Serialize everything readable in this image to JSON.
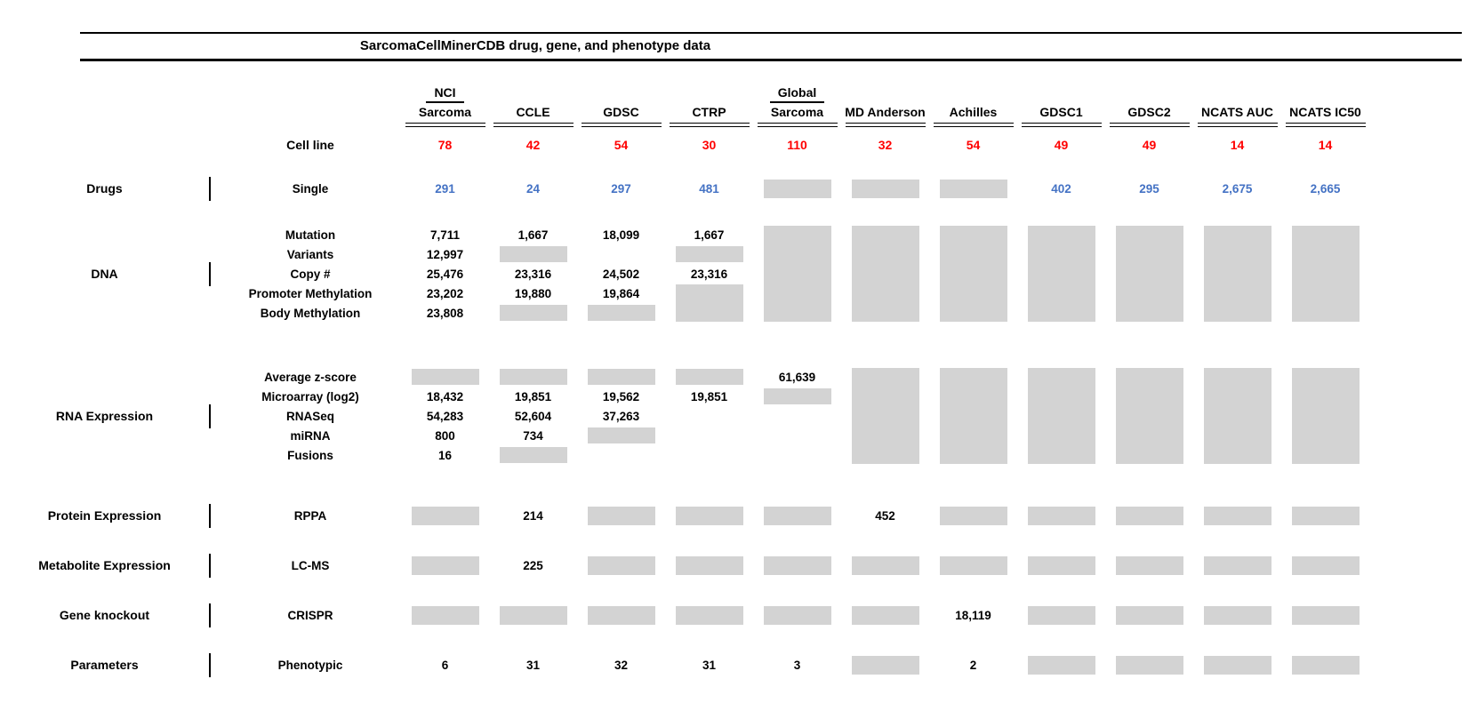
{
  "colors": {
    "count_red": "#ff0000",
    "drug_blue": "#4472c4",
    "no_data_gray": "#d3d3d3",
    "rule_black": "#000000"
  },
  "chart_data": {
    "type": "table",
    "title": "SarcomaCellMinerCDB drug, gene, and phenotype data",
    "columns": [
      {
        "group": "NCI",
        "name": "Sarcoma"
      },
      {
        "group": "",
        "name": "CCLE"
      },
      {
        "group": "",
        "name": "GDSC"
      },
      {
        "group": "",
        "name": "CTRP"
      },
      {
        "group": "Global",
        "name": "Sarcoma"
      },
      {
        "group": "",
        "name": "MD Anderson"
      },
      {
        "group": "",
        "name": "Achilles"
      },
      {
        "group": "",
        "name": "GDSC1"
      },
      {
        "group": "",
        "name": "GDSC2"
      },
      {
        "group": "",
        "name": "NCATS AUC"
      },
      {
        "group": "",
        "name": "NCATS IC50"
      }
    ],
    "cell_line": {
      "label": "Cell line",
      "values": [
        "78",
        "42",
        "54",
        "30",
        "110",
        "32",
        "54",
        "49",
        "49",
        "14",
        "14"
      ]
    },
    "sections": [
      {
        "category": "Drugs",
        "rows": [
          {
            "label": "Single",
            "color": "blue",
            "cells": [
              "291",
              "24",
              "297",
              "481",
              {
                "na": "box"
              },
              {
                "na": "box"
              },
              {
                "na": "box"
              },
              "402",
              "295",
              "2,675",
              "2,665"
            ]
          }
        ]
      },
      {
        "category": "DNA",
        "rows": [
          {
            "label": "Mutation",
            "cells": [
              "7,711",
              "1,667",
              "18,099",
              "1,667",
              {
                "na": "span"
              },
              {
                "na": "span"
              },
              {
                "na": "span"
              },
              {
                "na": "span"
              },
              {
                "na": "span"
              },
              {
                "na": "span"
              },
              {
                "na": "span"
              }
            ]
          },
          {
            "label": "Variants",
            "cells": [
              "12,997",
              {
                "na": "box"
              },
              null,
              {
                "na": "box"
              },
              {
                "na": "span"
              },
              {
                "na": "span"
              },
              {
                "na": "span"
              },
              {
                "na": "span"
              },
              {
                "na": "span"
              },
              {
                "na": "span"
              },
              {
                "na": "span"
              }
            ]
          },
          {
            "label": "Copy #",
            "cells": [
              "25,476",
              "23,316",
              "24,502",
              "23,316",
              {
                "na": "span"
              },
              {
                "na": "span"
              },
              {
                "na": "span"
              },
              {
                "na": "span"
              },
              {
                "na": "span"
              },
              {
                "na": "span"
              },
              {
                "na": "span"
              }
            ]
          },
          {
            "label": "Promoter Methylation",
            "cells": [
              "23,202",
              "19,880",
              "19,864",
              {
                "na": "span"
              },
              {
                "na": "span"
              },
              {
                "na": "span"
              },
              {
                "na": "span"
              },
              {
                "na": "span"
              },
              {
                "na": "span"
              },
              {
                "na": "span"
              },
              {
                "na": "span"
              }
            ]
          },
          {
            "label": "Body Methylation",
            "cells": [
              "23,808",
              {
                "na": "box"
              },
              {
                "na": "box"
              },
              {
                "na": "span"
              },
              {
                "na": "span"
              },
              {
                "na": "span"
              },
              {
                "na": "span"
              },
              {
                "na": "span"
              },
              {
                "na": "span"
              },
              {
                "na": "span"
              },
              {
                "na": "span"
              }
            ]
          }
        ]
      },
      {
        "category": "RNA Expression",
        "rows": [
          {
            "label": "Average z-score",
            "cells": [
              {
                "na": "box"
              },
              {
                "na": "box"
              },
              {
                "na": "box"
              },
              {
                "na": "box"
              },
              "61,639",
              {
                "na": "span"
              },
              {
                "na": "span"
              },
              {
                "na": "span"
              },
              {
                "na": "span"
              },
              {
                "na": "span"
              },
              {
                "na": "span"
              }
            ]
          },
          {
            "label": "Microarray (log2)",
            "cells": [
              "18,432",
              "19,851",
              "19,562",
              "19,851",
              {
                "na": "box"
              },
              {
                "na": "span"
              },
              {
                "na": "span"
              },
              {
                "na": "span"
              },
              {
                "na": "span"
              },
              {
                "na": "span"
              },
              {
                "na": "span"
              }
            ]
          },
          {
            "label": "RNASeq",
            "cells": [
              "54,283",
              "52,604",
              "37,263",
              null,
              null,
              {
                "na": "span"
              },
              {
                "na": "span"
              },
              {
                "na": "span"
              },
              {
                "na": "span"
              },
              {
                "na": "span"
              },
              {
                "na": "span"
              }
            ]
          },
          {
            "label": "miRNA",
            "cells": [
              "800",
              "734",
              {
                "na": "box"
              },
              null,
              null,
              {
                "na": "span"
              },
              {
                "na": "span"
              },
              {
                "na": "span"
              },
              {
                "na": "span"
              },
              {
                "na": "span"
              },
              {
                "na": "span"
              }
            ]
          },
          {
            "label": "Fusions",
            "cells": [
              "16",
              {
                "na": "box"
              },
              null,
              null,
              null,
              {
                "na": "span"
              },
              {
                "na": "span"
              },
              {
                "na": "span"
              },
              {
                "na": "span"
              },
              {
                "na": "span"
              },
              {
                "na": "span"
              }
            ]
          }
        ]
      },
      {
        "category": "Protein Expression",
        "rows": [
          {
            "label": "RPPA",
            "cells": [
              {
                "na": "box"
              },
              "214",
              {
                "na": "box"
              },
              {
                "na": "box"
              },
              {
                "na": "box"
              },
              "452",
              {
                "na": "box"
              },
              {
                "na": "box"
              },
              {
                "na": "box"
              },
              {
                "na": "box"
              },
              {
                "na": "box"
              }
            ]
          }
        ]
      },
      {
        "category": "Metabolite Expression",
        "rows": [
          {
            "label": "LC-MS",
            "cells": [
              {
                "na": "box"
              },
              "225",
              {
                "na": "box"
              },
              {
                "na": "box"
              },
              {
                "na": "box"
              },
              {
                "na": "box"
              },
              {
                "na": "box"
              },
              {
                "na": "box"
              },
              {
                "na": "box"
              },
              {
                "na": "box"
              },
              {
                "na": "box"
              }
            ]
          }
        ]
      },
      {
        "category": "Gene knockout",
        "rows": [
          {
            "label": "CRISPR",
            "cells": [
              {
                "na": "box"
              },
              {
                "na": "box"
              },
              {
                "na": "box"
              },
              {
                "na": "box"
              },
              {
                "na": "box"
              },
              {
                "na": "box"
              },
              "18,119",
              {
                "na": "box"
              },
              {
                "na": "box"
              },
              {
                "na": "box"
              },
              {
                "na": "box"
              }
            ]
          }
        ]
      },
      {
        "category": "Parameters",
        "rows": [
          {
            "label": "Phenotypic",
            "cells": [
              "6",
              "31",
              "32",
              "31",
              "3",
              {
                "na": "box"
              },
              "2",
              {
                "na": "box"
              },
              {
                "na": "box"
              },
              {
                "na": "box"
              },
              {
                "na": "box"
              }
            ]
          }
        ]
      }
    ]
  }
}
